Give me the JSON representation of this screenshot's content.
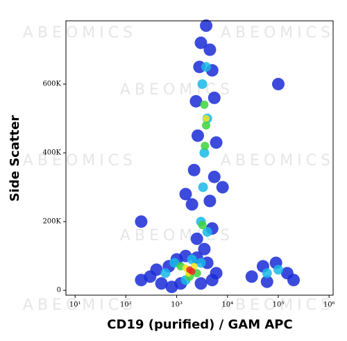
{
  "chart_data": {
    "type": "scatter",
    "xlabel": "CD19 (purified) / GAM APC",
    "ylabel": "Side Scatter",
    "watermark": "ABEOMICS",
    "xscale": "log",
    "xlim": [
      6.6,
      1200000
    ],
    "xticks": [
      {
        "value": 10,
        "label": "10¹"
      },
      {
        "value": 100,
        "label": "10²"
      },
      {
        "value": 1000,
        "label": "10³"
      },
      {
        "value": 10000,
        "label": "10⁴"
      },
      {
        "value": 100000,
        "label": "10⁵"
      },
      {
        "value": 1000000,
        "label": "10⁶"
      }
    ],
    "ylim": [
      -14000,
      784000
    ],
    "yticks": [
      0,
      {
        "value": 200000,
        "label": "200K"
      },
      {
        "value": 400000,
        "label": "400K"
      },
      {
        "value": 600000,
        "label": "600K"
      }
    ],
    "layers": [
      {
        "color": "#1a2bd6",
        "x": [
          300,
          500,
          700,
          1000,
          1500,
          2500,
          4000,
          6000,
          400,
          800,
          1200,
          3000,
          5000,
          200,
          2500,
          3500,
          5000,
          2000,
          4500,
          2200,
          5500,
          2600,
          6000,
          2400,
          5500,
          2800,
          5000,
          3000,
          4500,
          3800,
          30000,
          50000,
          90000,
          150000,
          200000,
          60000,
          1500,
          100000,
          8000,
          200
        ],
        "y": [
          40000,
          20000,
          70000,
          90000,
          100000,
          95000,
          80000,
          50000,
          60000,
          10000,
          20000,
          20000,
          30000,
          30000,
          150000,
          120000,
          180000,
          250000,
          260000,
          350000,
          330000,
          450000,
          430000,
          550000,
          560000,
          650000,
          640000,
          720000,
          700000,
          770000,
          40000,
          70000,
          80000,
          50000,
          30000,
          25000,
          280000,
          600000,
          300000,
          200000
        ]
      },
      {
        "color": "#17b8e8",
        "x": [
          600,
          900,
          1500,
          3000,
          2000,
          3000,
          4000,
          3300,
          3500,
          4000,
          3200,
          3800,
          60000,
          100000
        ],
        "y": [
          50000,
          80000,
          30000,
          80000,
          90000,
          200000,
          170000,
          300000,
          400000,
          500000,
          600000,
          650000,
          50000,
          60000
        ]
      },
      {
        "color": "#3cd23c",
        "x": [
          1200,
          2500,
          1800,
          3800,
          3500,
          3600,
          3200
        ],
        "y": [
          70000,
          50000,
          40000,
          480000,
          540000,
          420000,
          190000
        ]
      },
      {
        "color": "#f2e61a",
        "x": [
          1500,
          2200,
          1700,
          3800
        ],
        "y": [
          65000,
          70000,
          50000,
          500000
        ]
      },
      {
        "color": "#e8281e",
        "x": [
          1800,
          2000
        ],
        "y": [
          60000,
          55000
        ]
      }
    ]
  }
}
